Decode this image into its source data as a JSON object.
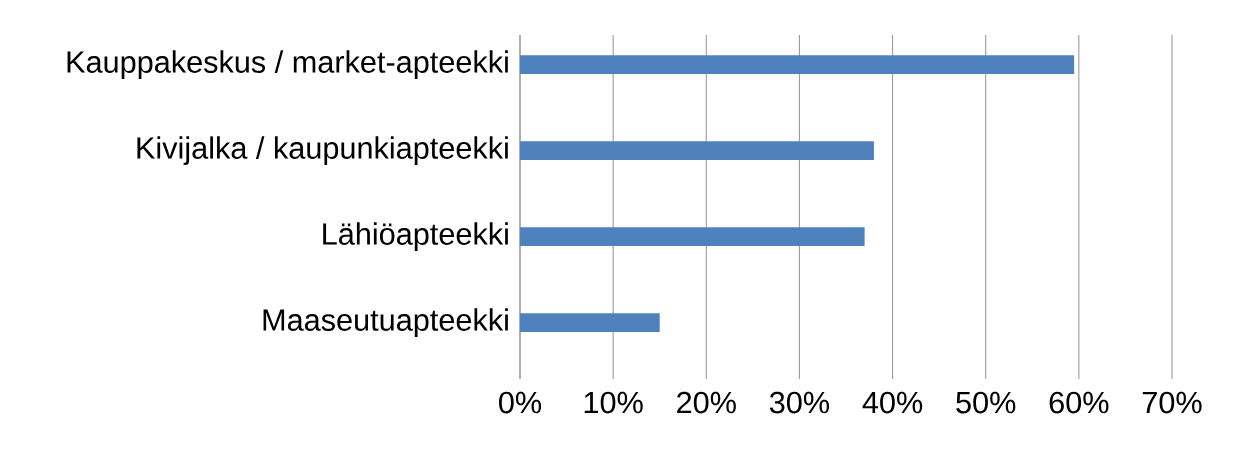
{
  "chart_data": {
    "type": "bar",
    "orientation": "horizontal",
    "categories": [
      "Kauppakeskus / market-apteekki",
      "Kivijalka / kaupunkiapteekki",
      "Lähiöapteekki",
      "Maaseutuapteekki"
    ],
    "values": [
      59.5,
      38,
      37,
      15
    ],
    "color": "#4f81bd",
    "xlim": [
      0,
      70
    ],
    "xticks": [
      {
        "value": 0,
        "label": "0%"
      },
      {
        "value": 10,
        "label": "10%"
      },
      {
        "value": 20,
        "label": "20%"
      },
      {
        "value": 30,
        "label": "30%"
      },
      {
        "value": 40,
        "label": "40%"
      },
      {
        "value": 50,
        "label": "50%"
      },
      {
        "value": 60,
        "label": "60%"
      },
      {
        "value": 70,
        "label": "70%"
      }
    ],
    "grid": "x"
  }
}
